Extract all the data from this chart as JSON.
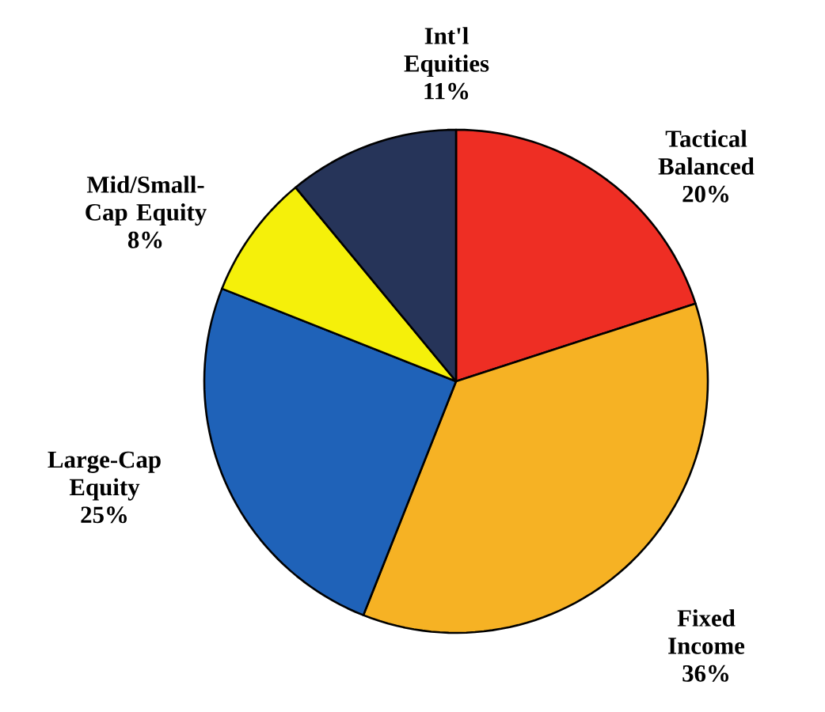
{
  "chart_data": {
    "type": "pie",
    "categories": [
      "Tactical Balanced",
      "Fixed Income",
      "Large-Cap Equity",
      "Mid/Small-Cap Equity",
      "Int'l Equities"
    ],
    "values": [
      20,
      36,
      25,
      8,
      11
    ],
    "value_labels": [
      "20%",
      "36%",
      "25%",
      "8%",
      "11%"
    ],
    "colors": [
      "#ee2e24",
      "#f6b224",
      "#1f62b8",
      "#f5f00a",
      "#263459"
    ]
  }
}
